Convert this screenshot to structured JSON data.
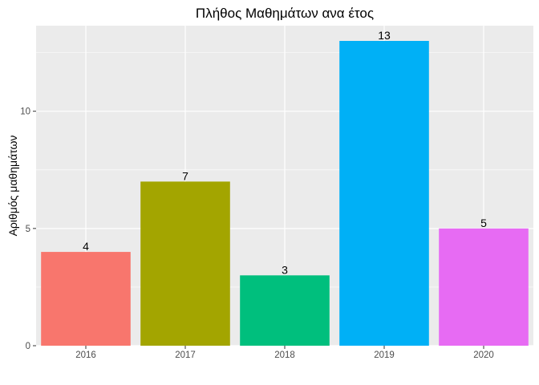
{
  "chart_data": {
    "type": "bar",
    "title": "Πλήθος Μαθημάτων ανα έτος",
    "xlabel": "",
    "ylabel": "Αριθμός μαθημάτων",
    "categories": [
      "2016",
      "2017",
      "2018",
      "2019",
      "2020"
    ],
    "values": [
      4,
      7,
      3,
      13,
      5
    ],
    "colors": [
      "#F8766D",
      "#A3A500",
      "#00BF7D",
      "#00B0F6",
      "#E76BF3"
    ],
    "ylim": [
      0,
      13.65
    ],
    "yticks": [
      0,
      5,
      10
    ],
    "grid": true,
    "legend": "none",
    "panel_background": "#EBEBEB",
    "grid_color": "#FFFFFF"
  }
}
